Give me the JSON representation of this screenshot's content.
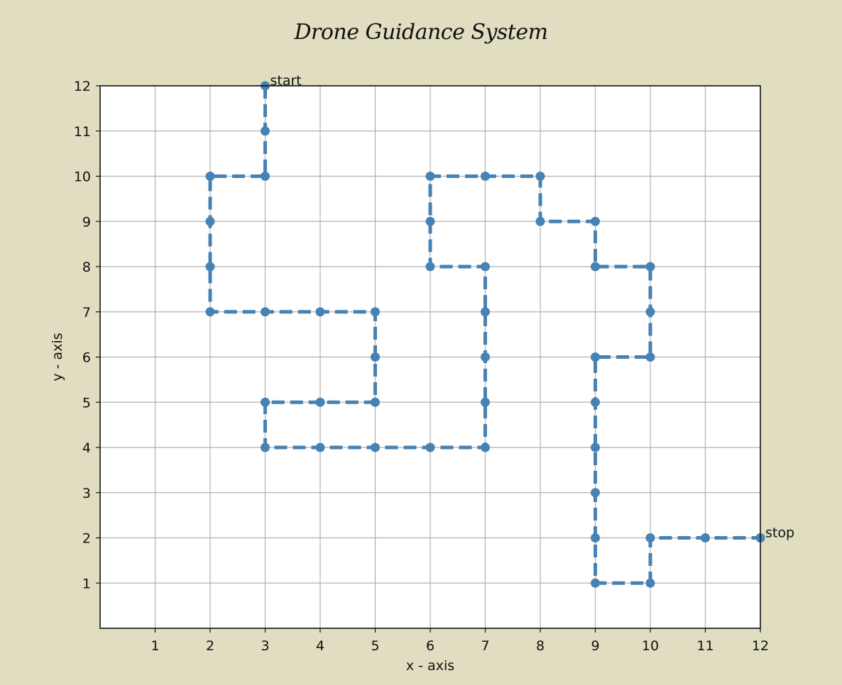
{
  "chart_data": {
    "type": "line",
    "title": "Drone Guidance System",
    "xlabel": "x - axis",
    "ylabel": "y - axis",
    "xlim": [
      0,
      12
    ],
    "ylim": [
      0,
      12
    ],
    "xticks": [
      1,
      2,
      3,
      4,
      5,
      6,
      7,
      8,
      9,
      10,
      11,
      12
    ],
    "yticks": [
      1,
      2,
      3,
      4,
      5,
      6,
      7,
      8,
      9,
      10,
      11,
      12
    ],
    "grid": true,
    "line_style": "dashed",
    "marker": "circle",
    "color": "#4682b4",
    "series": [
      {
        "x": [
          3,
          3,
          3,
          2,
          2,
          2,
          2,
          3,
          4,
          5,
          5,
          5,
          4,
          3,
          3,
          4,
          5,
          6,
          7,
          7,
          7,
          7,
          7,
          6,
          6,
          6,
          7,
          8,
          8,
          9,
          9,
          10,
          10,
          10,
          9,
          9,
          9,
          9,
          9,
          9,
          10,
          10,
          11,
          12
        ],
        "y": [
          12,
          11,
          10,
          10,
          9,
          8,
          7,
          7,
          7,
          7,
          6,
          5,
          5,
          5,
          4,
          4,
          4,
          4,
          4,
          5,
          6,
          7,
          8,
          8,
          9,
          10,
          10,
          10,
          9,
          9,
          8,
          8,
          7,
          6,
          6,
          5,
          4,
          3,
          2,
          1,
          1,
          2,
          2,
          2
        ]
      }
    ],
    "annotations": [
      {
        "text": "start",
        "x": 3,
        "y": 12
      },
      {
        "text": "stop",
        "x": 12,
        "y": 2
      }
    ]
  }
}
